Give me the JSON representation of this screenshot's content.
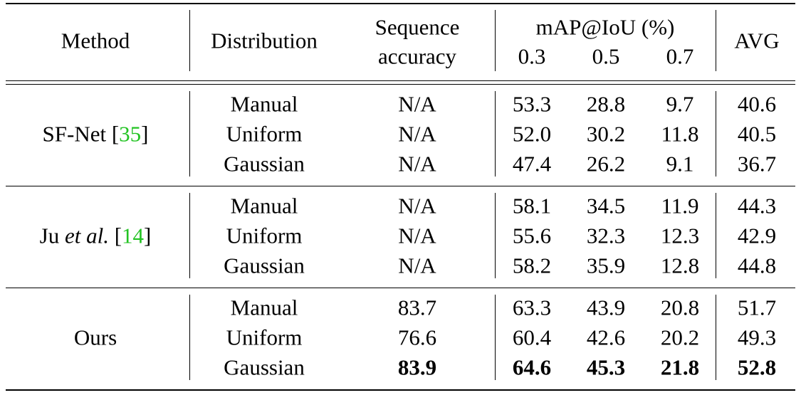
{
  "header": {
    "method": "Method",
    "distribution": "Distribution",
    "seq_line1": "Sequence",
    "seq_line2": "accuracy",
    "map_label": "mAP@IoU (%)",
    "iou": [
      "0.3",
      "0.5",
      "0.7"
    ],
    "avg": "AVG"
  },
  "groups": [
    {
      "method": "SF-Net [35]",
      "method_name": "SF-Net [",
      "method_name_italic": "",
      "method_ref": "35",
      "method_close": "]",
      "rows": [
        {
          "distribution": "Manual",
          "seq": "N/A",
          "iou": [
            "53.3",
            "28.8",
            "9.7"
          ],
          "avg": "40.6",
          "bold": false
        },
        {
          "distribution": "Uniform",
          "seq": "N/A",
          "iou": [
            "52.0",
            "30.2",
            "11.8"
          ],
          "avg": "40.5",
          "bold": false
        },
        {
          "distribution": "Gaussian",
          "seq": "N/A",
          "iou": [
            "47.4",
            "26.2",
            "9.1"
          ],
          "avg": "36.7",
          "bold": false
        }
      ]
    },
    {
      "method": "Ju et al. [14]",
      "method_name": "Ju ",
      "method_name_italic": "et al.",
      "method_ref": "14",
      "method_close": "]",
      "rows": [
        {
          "distribution": "Manual",
          "seq": "N/A",
          "iou": [
            "58.1",
            "34.5",
            "11.9"
          ],
          "avg": "44.3",
          "bold": false
        },
        {
          "distribution": "Uniform",
          "seq": "N/A",
          "iou": [
            "55.6",
            "32.3",
            "12.3"
          ],
          "avg": "42.9",
          "bold": false
        },
        {
          "distribution": "Gaussian",
          "seq": "N/A",
          "iou": [
            "58.2",
            "35.9",
            "12.8"
          ],
          "avg": "44.8",
          "bold": false
        }
      ]
    },
    {
      "method": "Ours",
      "method_name": "Ours",
      "method_name_italic": "",
      "method_ref": "",
      "method_close": "",
      "rows": [
        {
          "distribution": "Manual",
          "seq": "83.7",
          "iou": [
            "63.3",
            "43.9",
            "20.8"
          ],
          "avg": "51.7",
          "bold": false
        },
        {
          "distribution": "Uniform",
          "seq": "76.6",
          "iou": [
            "60.4",
            "42.6",
            "20.2"
          ],
          "avg": "49.3",
          "bold": false
        },
        {
          "distribution": "Gaussian",
          "seq": "83.9",
          "iou": [
            "64.6",
            "45.3",
            "21.8"
          ],
          "avg": "52.8",
          "bold": true
        }
      ]
    }
  ],
  "colors": {
    "citation": "#22c322",
    "rule": "#000000"
  }
}
